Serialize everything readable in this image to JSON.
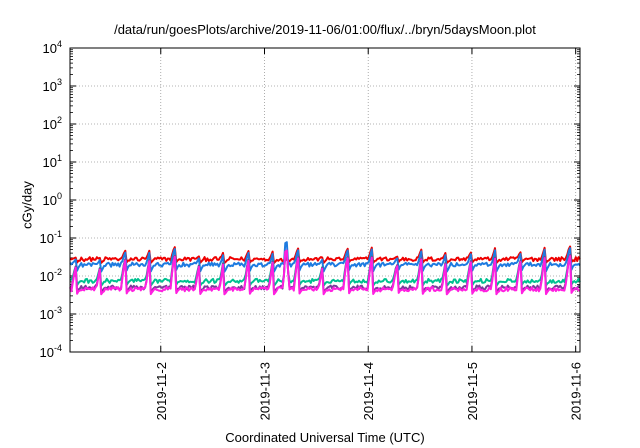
{
  "chart_data": {
    "type": "line",
    "title": "/data/run/goesPlots/archive/2019-11-06/01:00/flux/../bryn/5daysMoon.plot",
    "xlabel": "Coordinated Universal Time (UTC)",
    "ylabel": "cGy/day",
    "yscale": "log",
    "ylim": [
      0.0001,
      10000
    ],
    "xlim": [
      "2019-11-01 03:00",
      "2019-11-06 01:00"
    ],
    "x_ticks": [
      "2019-11-2",
      "2019-11-3",
      "2019-11-4",
      "2019-11-5",
      "2019-11-6"
    ],
    "y_ticks": [
      {
        "base": "10",
        "exp": "-4",
        "value": 0.0001
      },
      {
        "base": "10",
        "exp": "-3",
        "value": 0.001
      },
      {
        "base": "10",
        "exp": "-2",
        "value": 0.01
      },
      {
        "base": "10",
        "exp": "-1",
        "value": 0.1
      },
      {
        "base": "10",
        "exp": "0",
        "value": 1
      },
      {
        "base": "10",
        "exp": "1",
        "value": 10
      },
      {
        "base": "10",
        "exp": "2",
        "value": 100
      },
      {
        "base": "10",
        "exp": "3",
        "value": 1000
      },
      {
        "base": "10",
        "exp": "4",
        "value": 10000
      }
    ],
    "grid": true,
    "series": [
      {
        "color": "#ee0000",
        "baseline": 0.028,
        "spike_peak": 0.05,
        "spike_floor": 0.022
      },
      {
        "color": "#1e7be0",
        "baseline": 0.02,
        "spike_peak": 0.045,
        "spike_floor": 0.013
      },
      {
        "color": "#00c090",
        "baseline": 0.0075,
        "spike_peak": 0.03,
        "spike_floor": 0.0055
      },
      {
        "color": "#7a3a9a",
        "baseline": 0.005,
        "spike_peak": 0.03,
        "spike_floor": 0.0038
      },
      {
        "color": "#ff20e0",
        "baseline": 0.0045,
        "spike_peak": 0.028,
        "spike_floor": 0.0033
      }
    ],
    "notable_peak": {
      "x": "2019-11-03 05:00",
      "y": 0.09
    }
  }
}
